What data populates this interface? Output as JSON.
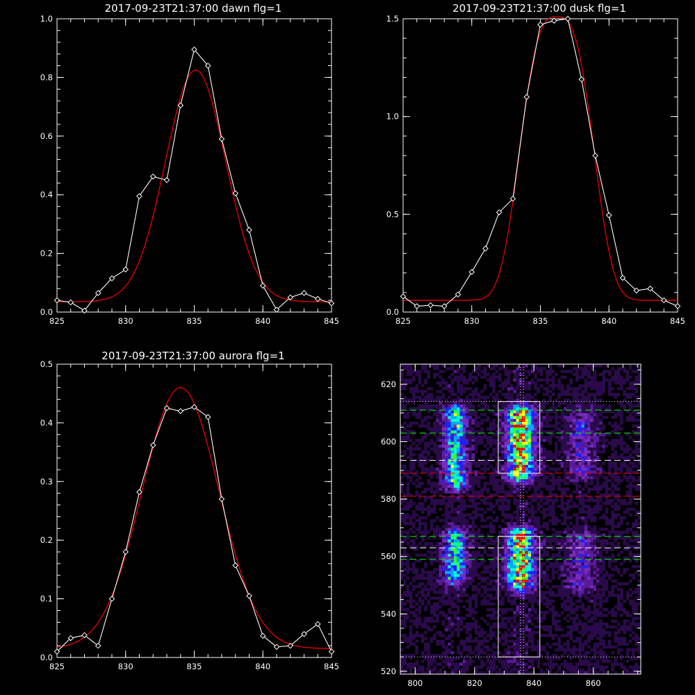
{
  "chart_data": [
    {
      "type": "line",
      "title": "2017-09-23T21:37:00 dawn flg=1",
      "xlim": [
        825,
        845
      ],
      "ylim": [
        0,
        1.0
      ],
      "xticks": [
        825,
        830,
        835,
        840,
        845
      ],
      "xtick_labels": [
        "825",
        "830",
        "835",
        "840",
        "845"
      ],
      "yticks": [
        0,
        0.2,
        0.4,
        0.6,
        0.8,
        1.0
      ],
      "ytick_labels": [
        "0.0",
        "0.2",
        "0.4",
        "0.6",
        "0.8",
        "1.0"
      ],
      "series": [
        {
          "kind": "measured",
          "color": "#ffffff",
          "marker": "diamond",
          "x": [
            825,
            826,
            827,
            828,
            829,
            830,
            831,
            832,
            833,
            834,
            835,
            836,
            837,
            838,
            839,
            840,
            841,
            842,
            843,
            844,
            845
          ],
          "y": [
            0.04,
            0.033,
            0.005,
            0.065,
            0.115,
            0.145,
            0.395,
            0.462,
            0.45,
            0.705,
            0.895,
            0.84,
            0.59,
            0.405,
            0.28,
            0.09,
            0.008,
            0.05,
            0.065,
            0.045,
            0.03
          ]
        },
        {
          "kind": "fit",
          "color": "#ff0000",
          "gaussian": {
            "amp": 0.79,
            "center": 835.1,
            "sigma": 2.2,
            "offset": 0.035
          }
        }
      ]
    },
    {
      "type": "line",
      "title": "2017-09-23T21:37:00 dusk flg=1",
      "xlim": [
        825,
        845
      ],
      "ylim": [
        0,
        1.5
      ],
      "xticks": [
        825,
        830,
        835,
        840,
        845
      ],
      "xtick_labels": [
        "825",
        "830",
        "835",
        "840",
        "845"
      ],
      "yticks": [
        0,
        0.5,
        1.0,
        1.5
      ],
      "ytick_labels": [
        "0.0",
        "0.5",
        "1.0",
        "1.5"
      ],
      "series": [
        {
          "kind": "measured",
          "color": "#ffffff",
          "marker": "diamond",
          "x": [
            825,
            826,
            827,
            828,
            829,
            830,
            831,
            832,
            833,
            834,
            835,
            836,
            837,
            838,
            839,
            840,
            841,
            842,
            843,
            844,
            845
          ],
          "y": [
            0.08,
            0.03,
            0.035,
            0.03,
            0.09,
            0.205,
            0.325,
            0.51,
            0.58,
            1.1,
            1.47,
            1.49,
            1.5,
            1.19,
            0.8,
            0.495,
            0.175,
            0.11,
            0.12,
            0.06,
            0.03
          ]
        },
        {
          "kind": "fit",
          "color": "#ff0000",
          "supergaussian": {
            "amp": 1.45,
            "center": 836.2,
            "sigma": 2.5,
            "power": 3,
            "offset": 0.06
          }
        }
      ]
    },
    {
      "type": "line",
      "title": "2017-09-23T21:37:00 aurora flg=1",
      "xlim": [
        825,
        845
      ],
      "ylim": [
        0,
        0.5
      ],
      "xticks": [
        825,
        830,
        835,
        840,
        845
      ],
      "xtick_labels": [
        "825",
        "830",
        "835",
        "840",
        "845"
      ],
      "yticks": [
        0,
        0.1,
        0.2,
        0.3,
        0.4,
        0.5
      ],
      "ytick_labels": [
        "0.0",
        "0.1",
        "0.2",
        "0.3",
        "0.4",
        "0.5"
      ],
      "series": [
        {
          "kind": "measured",
          "color": "#ffffff",
          "marker": "diamond",
          "x": [
            825,
            826,
            827,
            828,
            829,
            830,
            831,
            832,
            833,
            834,
            835,
            836,
            837,
            838,
            839,
            840,
            841,
            842,
            843,
            844,
            845
          ],
          "y": [
            0.01,
            0.033,
            0.038,
            0.02,
            0.1,
            0.18,
            0.282,
            0.362,
            0.425,
            0.42,
            0.427,
            0.41,
            0.27,
            0.157,
            0.105,
            0.037,
            0.018,
            0.02,
            0.04,
            0.057,
            0.01
          ]
        },
        {
          "kind": "fit",
          "color": "#ff0000",
          "gaussian": {
            "amp": 0.445,
            "center": 834.0,
            "sigma": 2.8,
            "offset": 0.015
          }
        }
      ]
    },
    {
      "type": "heatmap",
      "title": "",
      "xlim": [
        795,
        876
      ],
      "ylim": [
        519,
        627
      ],
      "xticks": [
        800,
        820,
        840,
        860
      ],
      "xtick_labels": [
        "800",
        "820",
        "840",
        "860"
      ],
      "yticks": [
        520,
        540,
        560,
        580,
        600,
        620
      ],
      "ytick_labels": [
        "520",
        "540",
        "560",
        "580",
        "600",
        "620"
      ],
      "colormap": [
        "#000000",
        "#2a0a4a",
        "#5a1a9a",
        "#7a2cc0",
        "#2020ff",
        "#00a8ff",
        "#00ffd0",
        "#30ff30",
        "#ffff00",
        "#ff0000"
      ],
      "emission_columns": [
        {
          "x_center": 813.5,
          "width": 4.0,
          "y_ranges": [
            [
              553,
              567
            ],
            [
              586,
              610
            ]
          ],
          "peak": 0.7
        },
        {
          "x_center": 835.5,
          "width": 4.5,
          "y_ranges": [
            [
              551,
              567
            ],
            [
              589,
              610
            ]
          ],
          "peak": 1.0
        },
        {
          "x_center": 856.0,
          "width": 5.0,
          "y_ranges": [
            [
              550,
              566
            ],
            [
              590,
              608
            ]
          ],
          "peak": 0.35
        }
      ],
      "boxes": [
        {
          "x": [
            828,
            842
          ],
          "y": [
            589,
            614
          ],
          "color": "#ffffff"
        },
        {
          "x": [
            828,
            842
          ],
          "y": [
            525,
            567
          ],
          "color": "#ffffff"
        }
      ],
      "vertical_lines": [
        {
          "x": 835.5,
          "style": "dotted",
          "color": "#ffffff"
        },
        {
          "x": 836.5,
          "style": "dotted",
          "color": "#ffffff"
        }
      ],
      "horizontal_lines": [
        {
          "y": 614,
          "style": "dotted",
          "color": "#ffffff"
        },
        {
          "y": 611,
          "style": "dashed",
          "color": "#00ff00"
        },
        {
          "y": 603,
          "style": "dashed",
          "color": "#00ff00"
        },
        {
          "y": 593.5,
          "style": "dashed",
          "color": "#ffffff"
        },
        {
          "y": 589,
          "style": "dashed",
          "color": "#ff0000"
        },
        {
          "y": 581,
          "style": "dashed",
          "color": "#ff0000"
        },
        {
          "y": 567,
          "style": "dashed",
          "color": "#00ff00"
        },
        {
          "y": 563,
          "style": "dashed",
          "color": "#ffffff"
        },
        {
          "y": 559,
          "style": "dashed",
          "color": "#00ff00"
        },
        {
          "y": 525,
          "style": "dotted",
          "color": "#ffffff"
        }
      ]
    }
  ]
}
